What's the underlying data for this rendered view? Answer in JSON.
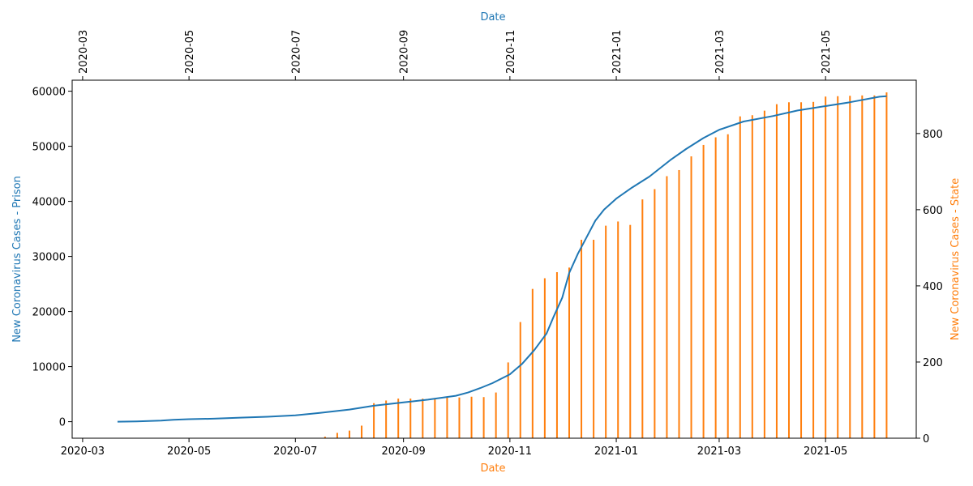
{
  "colors": {
    "prison": "#1f77b4",
    "state": "#ff7f0e",
    "axis": "#000000",
    "background": "#ffffff"
  },
  "chart_data": {
    "type": "line",
    "title": "",
    "xlabel_bottom": "Date",
    "xlabel_top": "Date",
    "ylabel_left": "New Coronavirus Cases - Prison",
    "ylabel_right": "New Coronavirus Cases - State",
    "x_ticks_bottom": [
      "2020-03",
      "2020-05",
      "2020-07",
      "2020-09",
      "2020-11",
      "2021-01",
      "2021-03",
      "2021-05"
    ],
    "x_ticks_top": [
      "2020-03",
      "2020-05",
      "2020-07",
      "2020-09",
      "2020-11",
      "2021-01",
      "2021-03",
      "2021-05"
    ],
    "y_ticks_left": [
      "0",
      "10000",
      "20000",
      "30000",
      "40000",
      "50000",
      "60000"
    ],
    "y_ticks_right": [
      "0",
      "200",
      "400",
      "600",
      "800"
    ],
    "ylim_left": [
      -3000,
      62000
    ],
    "ylim_right": [
      0,
      940
    ],
    "grid": false,
    "legend": "none",
    "series": [
      {
        "name": "New Coronavirus Cases - Prison",
        "kind": "line",
        "axis": "left",
        "color": "#1f77b4",
        "points": [
          [
            "2020-03-21",
            0
          ],
          [
            "2020-04-01",
            50
          ],
          [
            "2020-04-15",
            200
          ],
          [
            "2020-04-22",
            350
          ],
          [
            "2020-05-01",
            450
          ],
          [
            "2020-05-15",
            550
          ],
          [
            "2020-06-01",
            750
          ],
          [
            "2020-06-15",
            900
          ],
          [
            "2020-07-01",
            1150
          ],
          [
            "2020-07-15",
            1600
          ],
          [
            "2020-08-01",
            2200
          ],
          [
            "2020-08-15",
            2900
          ],
          [
            "2020-09-01",
            3500
          ],
          [
            "2020-09-15",
            4000
          ],
          [
            "2020-10-01",
            4700
          ],
          [
            "2020-10-08",
            5300
          ],
          [
            "2020-10-15",
            6100
          ],
          [
            "2020-10-22",
            7000
          ],
          [
            "2020-11-01",
            8600
          ],
          [
            "2020-11-08",
            10500
          ],
          [
            "2020-11-15",
            13000
          ],
          [
            "2020-11-22",
            16000
          ],
          [
            "2020-11-26",
            19000
          ],
          [
            "2020-12-01",
            22500
          ],
          [
            "2020-12-05",
            27000
          ],
          [
            "2020-12-10",
            30500
          ],
          [
            "2020-12-15",
            33500
          ],
          [
            "2020-12-20",
            36500
          ],
          [
            "2020-12-25",
            38500
          ],
          [
            "2021-01-01",
            40500
          ],
          [
            "2021-01-10",
            42500
          ],
          [
            "2021-01-20",
            44500
          ],
          [
            "2021-02-01",
            47500
          ],
          [
            "2021-02-10",
            49500
          ],
          [
            "2021-02-20",
            51500
          ],
          [
            "2021-03-01",
            53000
          ],
          [
            "2021-03-15",
            54500
          ],
          [
            "2021-04-01",
            55500
          ],
          [
            "2021-04-15",
            56500
          ],
          [
            "2021-05-01",
            57300
          ],
          [
            "2021-05-15",
            58000
          ],
          [
            "2021-06-01",
            59000
          ],
          [
            "2021-06-05",
            59100
          ]
        ]
      },
      {
        "name": "New Coronavirus Cases - State",
        "kind": "bar",
        "axis": "right",
        "color": "#ff7f0e",
        "points": [
          [
            "2020-07-18",
            4
          ],
          [
            "2020-07-25",
            14
          ],
          [
            "2020-08-01",
            20
          ],
          [
            "2020-08-08",
            33
          ],
          [
            "2020-08-15",
            92
          ],
          [
            "2020-08-22",
            99
          ],
          [
            "2020-08-29",
            104
          ],
          [
            "2020-09-05",
            104
          ],
          [
            "2020-09-12",
            104
          ],
          [
            "2020-09-19",
            104
          ],
          [
            "2020-09-26",
            107
          ],
          [
            "2020-10-03",
            107
          ],
          [
            "2020-10-10",
            109
          ],
          [
            "2020-10-17",
            108
          ],
          [
            "2020-10-24",
            120
          ],
          [
            "2020-10-31",
            199
          ],
          [
            "2020-11-07",
            305
          ],
          [
            "2020-11-14",
            392
          ],
          [
            "2020-11-21",
            420
          ],
          [
            "2020-11-28",
            436
          ],
          [
            "2020-12-05",
            448
          ],
          [
            "2020-12-12",
            521
          ],
          [
            "2020-12-19",
            521
          ],
          [
            "2020-12-26",
            558
          ],
          [
            "2021-01-02",
            569
          ],
          [
            "2021-01-09",
            560
          ],
          [
            "2021-01-16",
            627
          ],
          [
            "2021-01-23",
            654
          ],
          [
            "2021-01-30",
            688
          ],
          [
            "2021-02-06",
            704
          ],
          [
            "2021-02-13",
            740
          ],
          [
            "2021-02-20",
            770
          ],
          [
            "2021-02-27",
            790
          ],
          [
            "2021-03-06",
            798
          ],
          [
            "2021-03-13",
            845
          ],
          [
            "2021-03-20",
            848
          ],
          [
            "2021-03-27",
            860
          ],
          [
            "2021-04-03",
            877
          ],
          [
            "2021-04-10",
            882
          ],
          [
            "2021-04-17",
            882
          ],
          [
            "2021-04-24",
            883
          ],
          [
            "2021-05-01",
            897
          ],
          [
            "2021-05-08",
            898
          ],
          [
            "2021-05-15",
            899
          ],
          [
            "2021-05-22",
            900
          ],
          [
            "2021-05-29",
            900
          ],
          [
            "2021-06-05",
            908
          ]
        ]
      }
    ]
  }
}
